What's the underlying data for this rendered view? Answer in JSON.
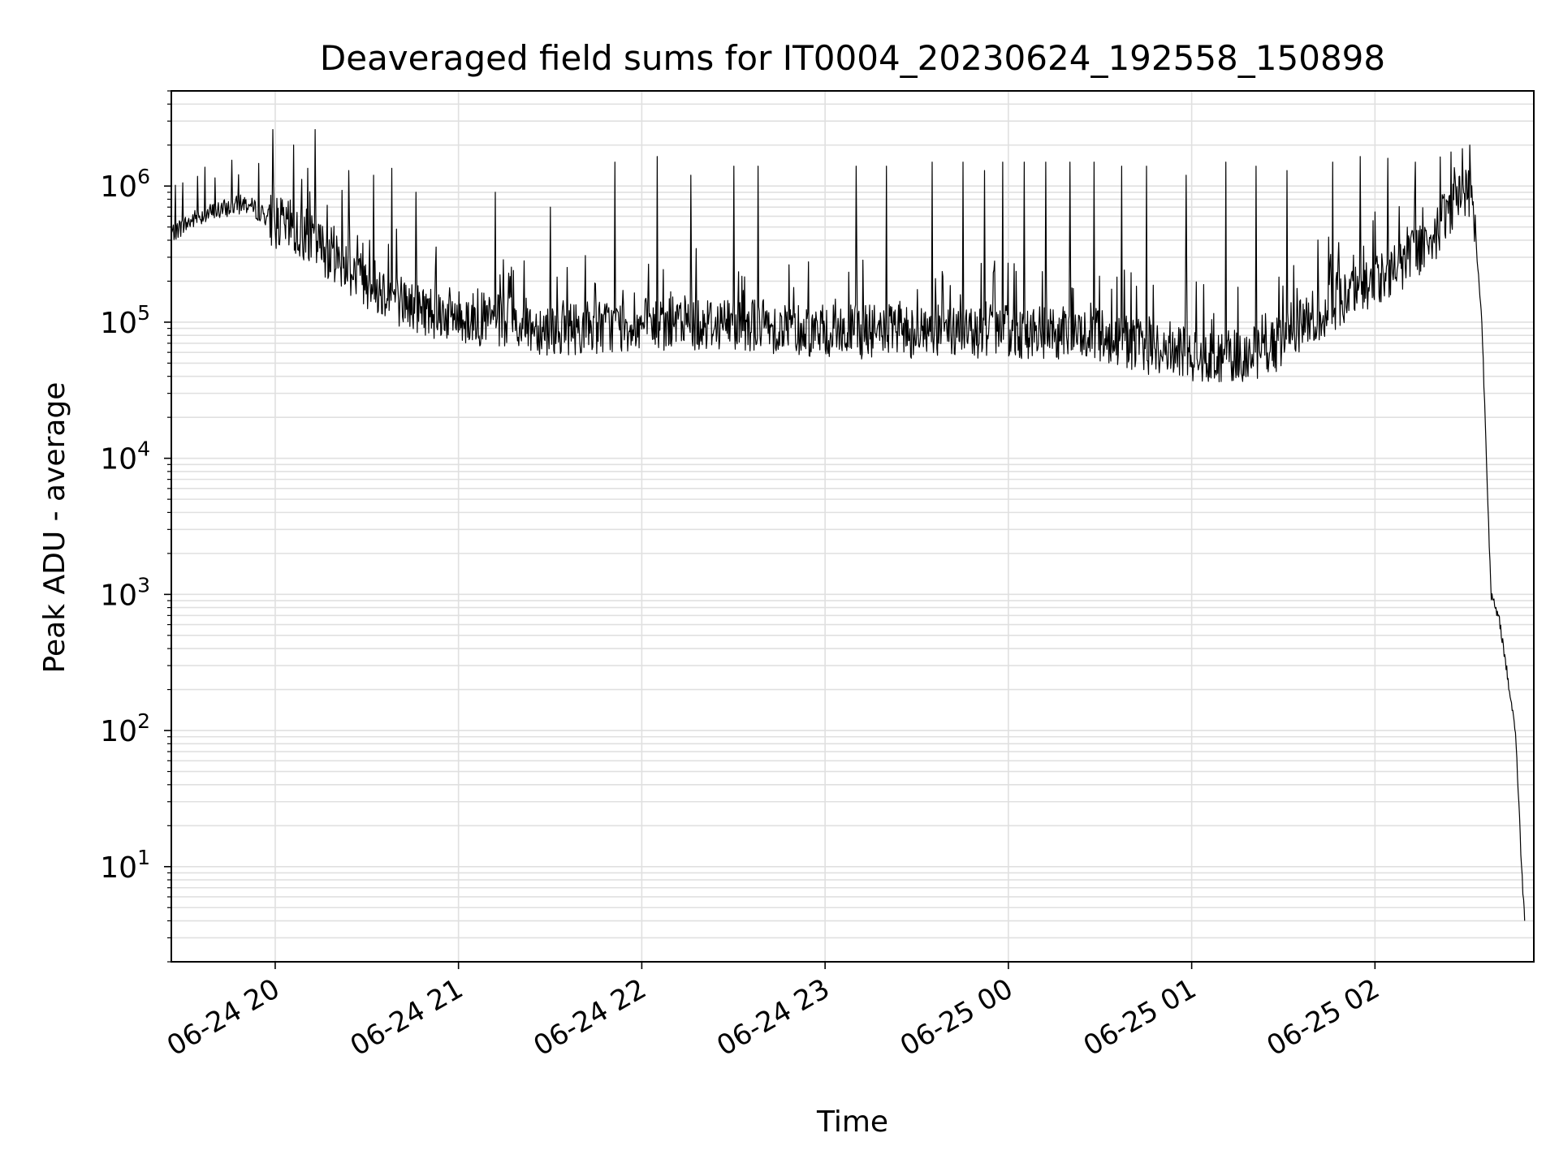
{
  "chart_data": {
    "type": "line",
    "title": "Deaveraged field sums for IT0004_20230624_192558_150898",
    "xlabel": "Time",
    "ylabel": "Peak ADU - average",
    "yscale": "log",
    "grid": "major and minor, both axes",
    "x_is_datetime": true,
    "xlim": [
      "2023-06-24 19:26",
      "2023-06-25 02:52"
    ],
    "ylim": [
      2,
      5000000
    ],
    "x_ticks": [
      {
        "t": "2023-06-24 20:00",
        "label": "06-24 20"
      },
      {
        "t": "2023-06-24 21:00",
        "label": "06-24 21"
      },
      {
        "t": "2023-06-24 22:00",
        "label": "06-24 22"
      },
      {
        "t": "2023-06-24 23:00",
        "label": "06-24 23"
      },
      {
        "t": "2023-06-25 00:00",
        "label": "06-25 00"
      },
      {
        "t": "2023-06-25 01:00",
        "label": "06-25 01"
      },
      {
        "t": "2023-06-25 02:00",
        "label": "06-25 02"
      }
    ],
    "y_ticks": [
      {
        "value": 10,
        "base": "10",
        "exp": "1"
      },
      {
        "value": 100,
        "base": "10",
        "exp": "2"
      },
      {
        "value": 1000,
        "base": "10",
        "exp": "3"
      },
      {
        "value": 10000,
        "base": "10",
        "exp": "4"
      },
      {
        "value": 100000,
        "base": "10",
        "exp": "5"
      },
      {
        "value": 1000000,
        "base": "10",
        "exp": "6"
      }
    ],
    "series": [
      {
        "color": "#000000",
        "baseline": [
          {
            "t": "2023-06-24 19:26",
            "y": 450000
          },
          {
            "t": "2023-06-24 19:35",
            "y": 600000
          },
          {
            "t": "2023-06-24 19:50",
            "y": 750000
          },
          {
            "t": "2023-06-24 20:00",
            "y": 550000
          },
          {
            "t": "2023-06-24 20:10",
            "y": 420000
          },
          {
            "t": "2023-06-24 20:20",
            "y": 300000
          },
          {
            "t": "2023-06-24 20:30",
            "y": 200000
          },
          {
            "t": "2023-06-24 20:45",
            "y": 130000
          },
          {
            "t": "2023-06-24 21:00",
            "y": 110000
          },
          {
            "t": "2023-06-24 21:30",
            "y": 90000
          },
          {
            "t": "2023-06-24 22:00",
            "y": 95000
          },
          {
            "t": "2023-06-24 22:30",
            "y": 100000
          },
          {
            "t": "2023-06-24 23:00",
            "y": 85000
          },
          {
            "t": "2023-06-24 23:30",
            "y": 85000
          },
          {
            "t": "2023-06-25 00:00",
            "y": 85000
          },
          {
            "t": "2023-06-25 00:30",
            "y": 80000
          },
          {
            "t": "2023-06-25 00:50",
            "y": 62000
          },
          {
            "t": "2023-06-25 01:10",
            "y": 55000
          },
          {
            "t": "2023-06-25 01:25",
            "y": 62000
          },
          {
            "t": "2023-06-25 01:40",
            "y": 110000
          },
          {
            "t": "2023-06-25 01:55",
            "y": 170000
          },
          {
            "t": "2023-06-25 02:10",
            "y": 280000
          },
          {
            "t": "2023-06-25 02:20",
            "y": 450000
          },
          {
            "t": "2023-06-25 02:26",
            "y": 800000
          },
          {
            "t": "2023-06-25 02:30",
            "y": 950000
          },
          {
            "t": "2023-06-25 02:32",
            "y": 850000
          },
          {
            "t": "2023-06-25 02:35",
            "y": 100000
          },
          {
            "t": "2023-06-25 02:38",
            "y": 1000
          },
          {
            "t": "2023-06-25 02:41",
            "y": 600
          },
          {
            "t": "2023-06-25 02:44",
            "y": 200
          },
          {
            "t": "2023-06-25 02:46",
            "y": 100
          },
          {
            "t": "2023-06-25 02:48",
            "y": 10
          },
          {
            "t": "2023-06-25 02:49",
            "y": 4
          }
        ],
        "spikes": [
          {
            "t": "2023-06-24 19:59",
            "y": 2600000
          },
          {
            "t": "2023-06-24 20:06",
            "y": 2000000
          },
          {
            "t": "2023-06-24 20:13",
            "y": 2600000
          },
          {
            "t": "2023-06-24 20:24",
            "y": 1300000
          },
          {
            "t": "2023-06-24 20:32",
            "y": 1200000
          },
          {
            "t": "2023-06-24 20:38",
            "y": 1350000
          },
          {
            "t": "2023-06-24 20:46",
            "y": 900000
          },
          {
            "t": "2023-06-24 21:12",
            "y": 900000
          },
          {
            "t": "2023-06-24 21:30",
            "y": 700000
          },
          {
            "t": "2023-06-24 21:51",
            "y": 1500000
          },
          {
            "t": "2023-06-24 22:05",
            "y": 1650000
          },
          {
            "t": "2023-06-24 22:16",
            "y": 1200000
          },
          {
            "t": "2023-06-24 22:30",
            "y": 1400000
          },
          {
            "t": "2023-06-24 22:38",
            "y": 1400000
          },
          {
            "t": "2023-06-24 23:10",
            "y": 1400000
          },
          {
            "t": "2023-06-24 23:20",
            "y": 1400000
          },
          {
            "t": "2023-06-24 23:35",
            "y": 1500000
          },
          {
            "t": "2023-06-24 23:45",
            "y": 1500000
          },
          {
            "t": "2023-06-24 23:52",
            "y": 1300000
          },
          {
            "t": "2023-06-24 23:58",
            "y": 1500000
          },
          {
            "t": "2023-06-25 00:05",
            "y": 1500000
          },
          {
            "t": "2023-06-25 00:12",
            "y": 1500000
          },
          {
            "t": "2023-06-25 00:20",
            "y": 1500000
          },
          {
            "t": "2023-06-25 00:28",
            "y": 1500000
          },
          {
            "t": "2023-06-25 00:37",
            "y": 1400000
          },
          {
            "t": "2023-06-25 00:45",
            "y": 1400000
          },
          {
            "t": "2023-06-25 00:58",
            "y": 1200000
          },
          {
            "t": "2023-06-25 01:11",
            "y": 1500000
          },
          {
            "t": "2023-06-25 01:21",
            "y": 1400000
          },
          {
            "t": "2023-06-25 01:31",
            "y": 1300000
          },
          {
            "t": "2023-06-25 01:46",
            "y": 1500000
          },
          {
            "t": "2023-06-25 01:55",
            "y": 1650000
          },
          {
            "t": "2023-06-25 02:04",
            "y": 1600000
          },
          {
            "t": "2023-06-25 02:13",
            "y": 1500000
          },
          {
            "t": "2023-06-25 02:31",
            "y": 2000000
          }
        ]
      }
    ]
  }
}
